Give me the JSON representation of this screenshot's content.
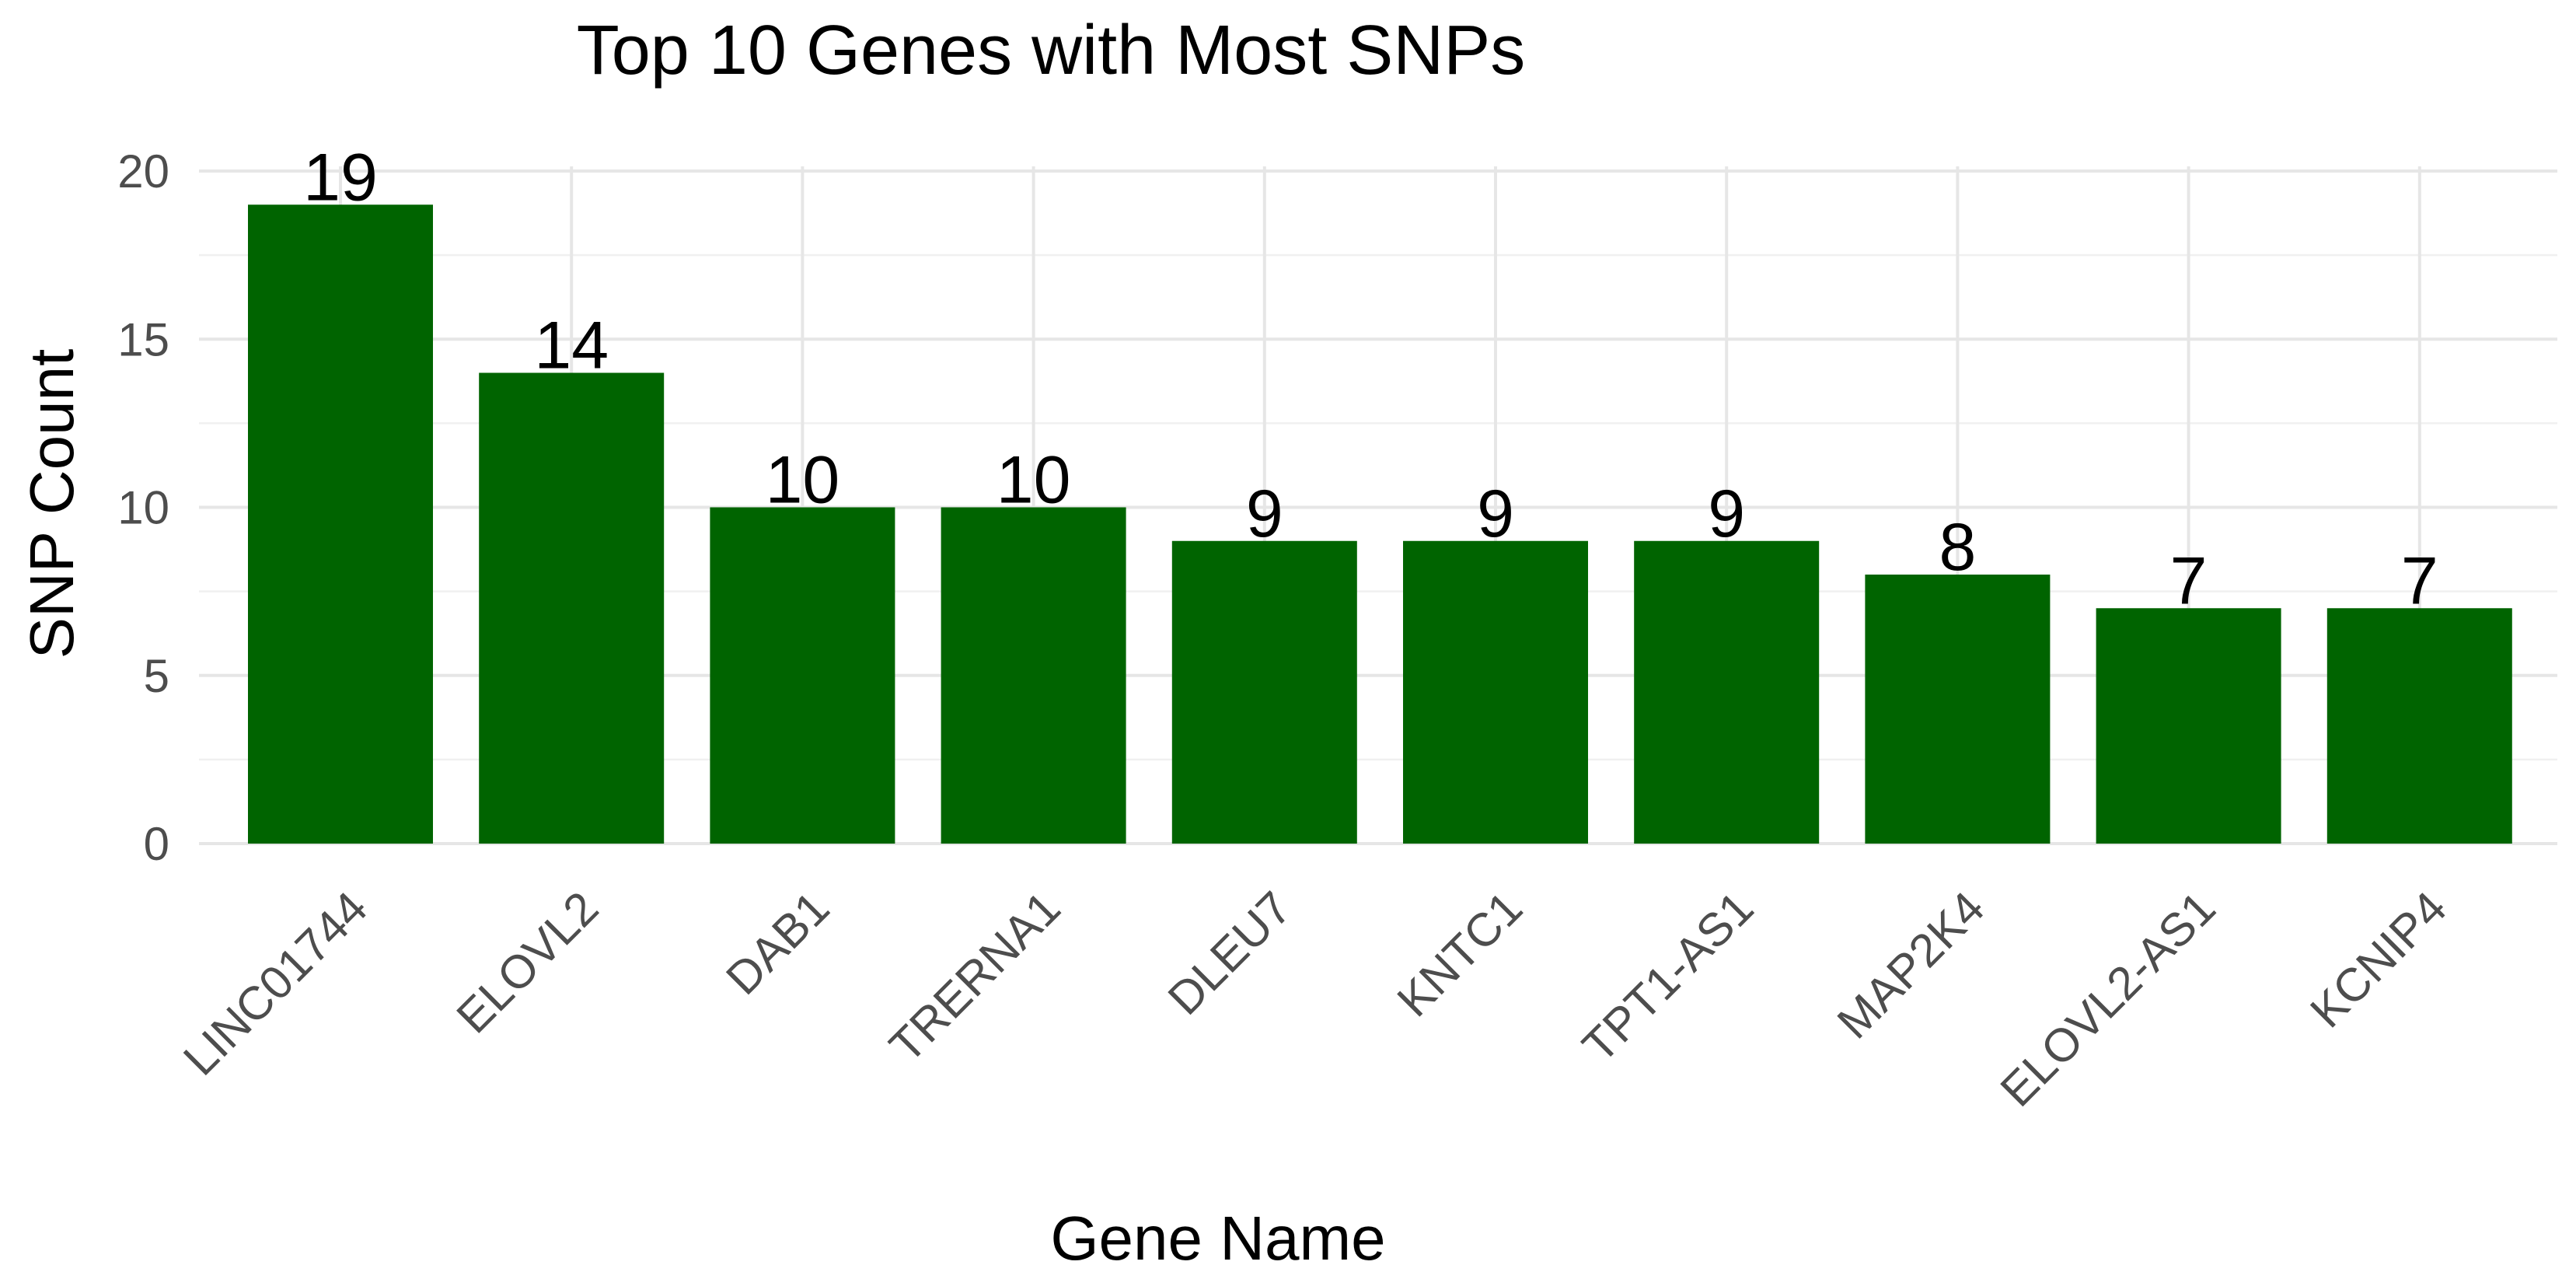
{
  "chart_data": {
    "type": "bar",
    "title": "Top 10 Genes with Most SNPs",
    "xlabel": "Gene Name",
    "ylabel": "SNP Count",
    "categories": [
      "LINC01744",
      "ELOVL2",
      "DAB1",
      "TRERNA1",
      "DLEU7",
      "KNTC1",
      "TPT1-AS1",
      "MAP2K4",
      "ELOVL2-AS1",
      "KCNIP4"
    ],
    "values": [
      19,
      14,
      10,
      10,
      9,
      9,
      9,
      8,
      7,
      7
    ],
    "ylim": [
      0,
      20
    ],
    "yticks": [
      "0",
      "5",
      "10",
      "15",
      "20"
    ],
    "grid": true,
    "legend": "none",
    "bar_color": "#006400"
  }
}
